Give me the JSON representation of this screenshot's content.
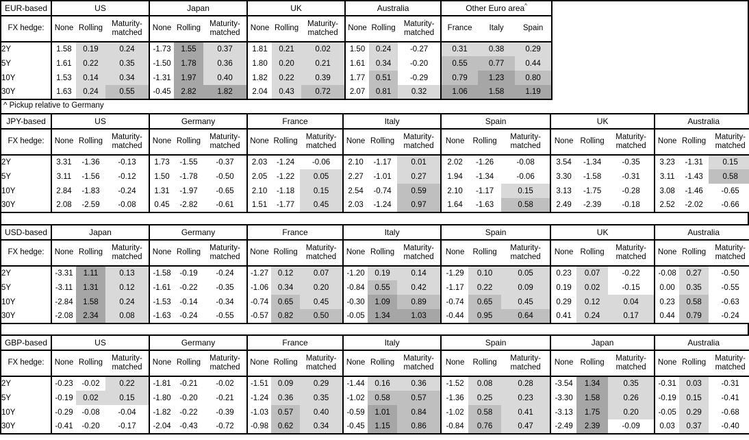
{
  "footnote": "^ Pickup relative to Germany",
  "fx_hedge_row_label": "FX hedge:",
  "hedge_columns": [
    "None",
    "Rolling",
    "Maturity-matched"
  ],
  "maturities": [
    "2Y",
    "5Y",
    "10Y",
    "30Y"
  ],
  "colors": {
    "shade_light": "#d9d9d9",
    "shade_medium": "#bfbfbf",
    "shade_dark": "#a6a6a6",
    "border": "#000000"
  },
  "shading_rule": {
    "applies_to": "hedged and pickup columns only",
    "light_range": "0 to 0.5",
    "medium_range": "0.5 to 1.0",
    "dark_range": "1.0 and above"
  },
  "tables": [
    {
      "base_label": "EUR-based",
      "groups": [
        {
          "name": "US",
          "type": "hedge",
          "rows": [
            [
              "1.58",
              "0.19",
              "0.24"
            ],
            [
              "1.61",
              "0.22",
              "0.35"
            ],
            [
              "1.53",
              "0.14",
              "0.34"
            ],
            [
              "1.63",
              "0.24",
              "0.55"
            ]
          ]
        },
        {
          "name": "Japan",
          "type": "hedge",
          "rows": [
            [
              "-1.73",
              "1.55",
              "0.37"
            ],
            [
              "-1.50",
              "1.78",
              "0.36"
            ],
            [
              "-1.31",
              "1.97",
              "0.40"
            ],
            [
              "-0.45",
              "2.82",
              "1.82"
            ]
          ]
        },
        {
          "name": "UK",
          "type": "hedge",
          "rows": [
            [
              "1.81",
              "0.21",
              "0.02"
            ],
            [
              "1.80",
              "0.20",
              "0.21"
            ],
            [
              "1.82",
              "0.22",
              "0.39"
            ],
            [
              "2.04",
              "0.43",
              "0.72"
            ]
          ]
        },
        {
          "name": "Australia",
          "type": "hedge",
          "rows": [
            [
              "1.50",
              "0.24",
              "-0.27"
            ],
            [
              "1.61",
              "0.34",
              "-0.20"
            ],
            [
              "1.77",
              "0.51",
              "-0.29"
            ],
            [
              "2.07",
              "0.81",
              "0.32"
            ]
          ]
        },
        {
          "name": "Other Euro area",
          "superscript": "^",
          "type": "countries",
          "columns": [
            "France",
            "Italy",
            "Spain"
          ],
          "rows": [
            [
              "0.31",
              "0.38",
              "0.29"
            ],
            [
              "0.55",
              "0.77",
              "0.44"
            ],
            [
              "0.79",
              "1.23",
              "0.80"
            ],
            [
              "1.06",
              "1.58",
              "1.19"
            ]
          ]
        }
      ]
    },
    {
      "base_label": "JPY-based",
      "groups": [
        {
          "name": "US",
          "type": "hedge",
          "rows": [
            [
              "3.31",
              "-1.36",
              "-0.13"
            ],
            [
              "3.11",
              "-1.56",
              "-0.12"
            ],
            [
              "2.84",
              "-1.83",
              "-0.24"
            ],
            [
              "2.08",
              "-2.59",
              "-0.08"
            ]
          ]
        },
        {
          "name": "Germany",
          "type": "hedge",
          "rows": [
            [
              "1.73",
              "-1.55",
              "-0.37"
            ],
            [
              "1.50",
              "-1.78",
              "-0.50"
            ],
            [
              "1.31",
              "-1.97",
              "-0.65"
            ],
            [
              "0.45",
              "-2.82",
              "-0.61"
            ]
          ]
        },
        {
          "name": "France",
          "type": "hedge",
          "rows": [
            [
              "2.03",
              "-1.24",
              "-0.06"
            ],
            [
              "2.05",
              "-1.22",
              "0.05"
            ],
            [
              "2.10",
              "-1.18",
              "0.15"
            ],
            [
              "1.51",
              "-1.77",
              "0.45"
            ]
          ]
        },
        {
          "name": "Italy",
          "type": "hedge",
          "rows": [
            [
              "2.10",
              "-1.17",
              "0.01"
            ],
            [
              "2.27",
              "-1.01",
              "0.27"
            ],
            [
              "2.54",
              "-0.74",
              "0.59"
            ],
            [
              "2.03",
              "-1.24",
              "0.97"
            ]
          ]
        },
        {
          "name": "Spain",
          "type": "hedge",
          "rows": [
            [
              "2.02",
              "-1.26",
              "-0.08"
            ],
            [
              "1.94",
              "-1.34",
              "-0.06"
            ],
            [
              "2.10",
              "-1.17",
              "0.15"
            ],
            [
              "1.64",
              "-1.63",
              "0.58"
            ]
          ]
        },
        {
          "name": "UK",
          "type": "hedge",
          "rows": [
            [
              "3.54",
              "-1.34",
              "-0.35"
            ],
            [
              "3.30",
              "-1.58",
              "-0.31"
            ],
            [
              "3.13",
              "-1.75",
              "-0.28"
            ],
            [
              "2.49",
              "-2.39",
              "-0.18"
            ]
          ]
        },
        {
          "name": "Australia",
          "type": "hedge",
          "rows": [
            [
              "3.23",
              "-1.31",
              "0.15"
            ],
            [
              "3.11",
              "-1.43",
              "0.58"
            ],
            [
              "3.08",
              "-1.46",
              "-0.65"
            ],
            [
              "2.52",
              "-2.02",
              "-0.66"
            ]
          ]
        }
      ]
    },
    {
      "base_label": "USD-based",
      "groups": [
        {
          "name": "Japan",
          "type": "hedge",
          "rows": [
            [
              "-3.31",
              "1.11",
              "0.13"
            ],
            [
              "-3.11",
              "1.31",
              "0.12"
            ],
            [
              "-2.84",
              "1.58",
              "0.24"
            ],
            [
              "-2.08",
              "2.34",
              "0.08"
            ]
          ]
        },
        {
          "name": "Germany",
          "type": "hedge",
          "rows": [
            [
              "-1.58",
              "-0.19",
              "-0.24"
            ],
            [
              "-1.61",
              "-0.22",
              "-0.35"
            ],
            [
              "-1.53",
              "-0.14",
              "-0.34"
            ],
            [
              "-1.63",
              "-0.24",
              "-0.55"
            ]
          ]
        },
        {
          "name": "France",
          "type": "hedge",
          "rows": [
            [
              "-1.27",
              "0.12",
              "0.07"
            ],
            [
              "-1.06",
              "0.34",
              "0.20"
            ],
            [
              "-0.74",
              "0.65",
              "0.45"
            ],
            [
              "-0.57",
              "0.82",
              "0.50"
            ]
          ]
        },
        {
          "name": "Italy",
          "type": "hedge",
          "rows": [
            [
              "-1.20",
              "0.19",
              "0.14"
            ],
            [
              "-0.84",
              "0.55",
              "0.42"
            ],
            [
              "-0.30",
              "1.09",
              "0.89"
            ],
            [
              "-0.05",
              "1.34",
              "1.03"
            ]
          ]
        },
        {
          "name": "Spain",
          "type": "hedge",
          "rows": [
            [
              "-1.29",
              "0.10",
              "0.05"
            ],
            [
              "-1.17",
              "0.22",
              "0.09"
            ],
            [
              "-0.74",
              "0.65",
              "0.45"
            ],
            [
              "-0.44",
              "0.95",
              "0.64"
            ]
          ]
        },
        {
          "name": "UK",
          "type": "hedge",
          "rows": [
            [
              "0.23",
              "0.07",
              "-0.22"
            ],
            [
              "0.19",
              "0.02",
              "-0.15"
            ],
            [
              "0.29",
              "0.12",
              "0.04"
            ],
            [
              "0.41",
              "0.24",
              "0.17"
            ]
          ]
        },
        {
          "name": "Australia",
          "type": "hedge",
          "rows": [
            [
              "-0.08",
              "0.27",
              "-0.50"
            ],
            [
              "0.00",
              "0.35",
              "-0.55"
            ],
            [
              "0.23",
              "0.58",
              "-0.63"
            ],
            [
              "0.44",
              "0.79",
              "-0.24"
            ]
          ]
        }
      ]
    },
    {
      "base_label": "GBP-based",
      "groups": [
        {
          "name": "US",
          "type": "hedge",
          "rows": [
            [
              "-0.23",
              "-0.02",
              "0.22"
            ],
            [
              "-0.19",
              "0.02",
              "0.15"
            ],
            [
              "-0.29",
              "-0.08",
              "-0.04"
            ],
            [
              "-0.41",
              "-0.20",
              "-0.17"
            ]
          ]
        },
        {
          "name": "Germany",
          "type": "hedge",
          "rows": [
            [
              "-1.81",
              "-0.21",
              "-0.02"
            ],
            [
              "-1.80",
              "-0.20",
              "-0.21"
            ],
            [
              "-1.82",
              "-0.22",
              "-0.39"
            ],
            [
              "-2.04",
              "-0.43",
              "-0.72"
            ]
          ]
        },
        {
          "name": "France",
          "type": "hedge",
          "rows": [
            [
              "-1.51",
              "0.09",
              "0.29"
            ],
            [
              "-1.24",
              "0.36",
              "0.35"
            ],
            [
              "-1.03",
              "0.57",
              "0.40"
            ],
            [
              "-0.98",
              "0.62",
              "0.34"
            ]
          ]
        },
        {
          "name": "Italy",
          "type": "hedge",
          "rows": [
            [
              "-1.44",
              "0.16",
              "0.36"
            ],
            [
              "-1.02",
              "0.58",
              "0.57"
            ],
            [
              "-0.59",
              "1.01",
              "0.84"
            ],
            [
              "-0.45",
              "1.15",
              "0.86"
            ]
          ]
        },
        {
          "name": "Spain",
          "type": "hedge",
          "rows": [
            [
              "-1.52",
              "0.08",
              "0.28"
            ],
            [
              "-1.36",
              "0.25",
              "0.23"
            ],
            [
              "-1.02",
              "0.58",
              "0.41"
            ],
            [
              "-0.84",
              "0.76",
              "0.47"
            ]
          ]
        },
        {
          "name": "Japan",
          "type": "hedge",
          "rows": [
            [
              "-3.54",
              "1.34",
              "0.35"
            ],
            [
              "-3.30",
              "1.58",
              "0.26"
            ],
            [
              "-3.13",
              "1.75",
              "0.20"
            ],
            [
              "-2.49",
              "2.39",
              "-0.09"
            ]
          ]
        },
        {
          "name": "Australia",
          "type": "hedge",
          "rows": [
            [
              "-0.31",
              "0.03",
              "-0.31"
            ],
            [
              "-0.19",
              "0.15",
              "-0.41"
            ],
            [
              "-0.05",
              "0.29",
              "-0.68"
            ],
            [
              "0.03",
              "0.37",
              "-0.40"
            ]
          ]
        }
      ]
    }
  ]
}
